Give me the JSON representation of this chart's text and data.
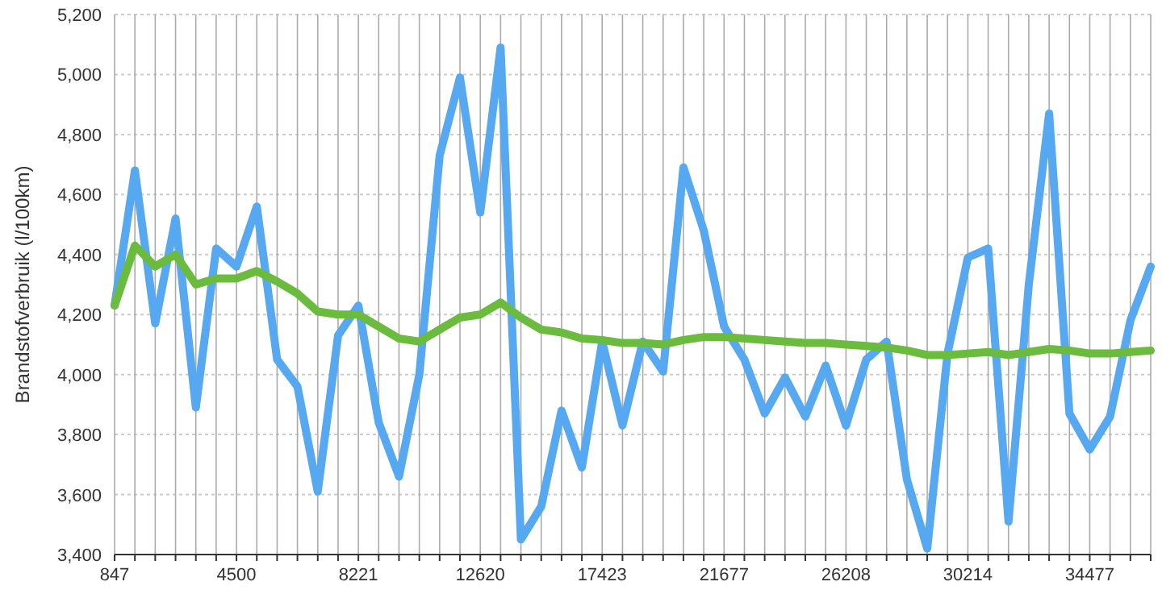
{
  "chart_data": {
    "type": "line",
    "ylabel": "Brandstofverbruik (l/100km)",
    "categories": [
      "847",
      null,
      null,
      null,
      null,
      null,
      "4500",
      null,
      null,
      null,
      null,
      null,
      "8221",
      null,
      null,
      null,
      null,
      null,
      "12620",
      null,
      null,
      null,
      null,
      null,
      "17423",
      null,
      null,
      null,
      null,
      null,
      "21677",
      null,
      null,
      null,
      null,
      null,
      "26208",
      null,
      null,
      null,
      null,
      null,
      "30214",
      null,
      null,
      null,
      null,
      null,
      "34477",
      null,
      null,
      null
    ],
    "series": [
      {
        "color": "#56a8f0",
        "values": [
          4230,
          4680,
          4170,
          4520,
          3890,
          4420,
          4360,
          4560,
          4050,
          3960,
          3610,
          4130,
          4230,
          3840,
          3660,
          4000,
          4730,
          4990,
          4540,
          5090,
          3450,
          3560,
          3880,
          3690,
          4110,
          3830,
          4110,
          4010,
          4690,
          4480,
          4160,
          4050,
          3870,
          3990,
          3860,
          4030,
          3830,
          4050,
          4110,
          3650,
          3420,
          4070,
          4390,
          4420,
          3510,
          4300,
          4870,
          3870,
          3750,
          3860,
          4180,
          4360
        ]
      },
      {
        "color": "#6bbb3e",
        "values": [
          4230,
          4430,
          4360,
          4400,
          4300,
          4320,
          4320,
          4345,
          4310,
          4270,
          4210,
          4200,
          4200,
          4160,
          4120,
          4110,
          4150,
          4190,
          4200,
          4240,
          4190,
          4150,
          4140,
          4120,
          4115,
          4105,
          4105,
          4100,
          4115,
          4125,
          4125,
          4120,
          4115,
          4110,
          4105,
          4105,
          4100,
          4095,
          4090,
          4080,
          4065,
          4065,
          4070,
          4075,
          4065,
          4075,
          4085,
          4080,
          4070,
          4070,
          4075,
          4080
        ]
      }
    ],
    "ylim": [
      3400,
      5200
    ],
    "yticks": [
      {
        "value": 3400,
        "label": "3,400"
      },
      {
        "value": 3600,
        "label": "3,600"
      },
      {
        "value": 3800,
        "label": "3,800"
      },
      {
        "value": 4000,
        "label": "4,000"
      },
      {
        "value": 4200,
        "label": "4,200"
      },
      {
        "value": 4400,
        "label": "4,400"
      },
      {
        "value": 4600,
        "label": "4,600"
      },
      {
        "value": 4800,
        "label": "4,800"
      },
      {
        "value": 5000,
        "label": "5,000"
      },
      {
        "value": 5200,
        "label": "5,200"
      }
    ],
    "grid": true
  }
}
